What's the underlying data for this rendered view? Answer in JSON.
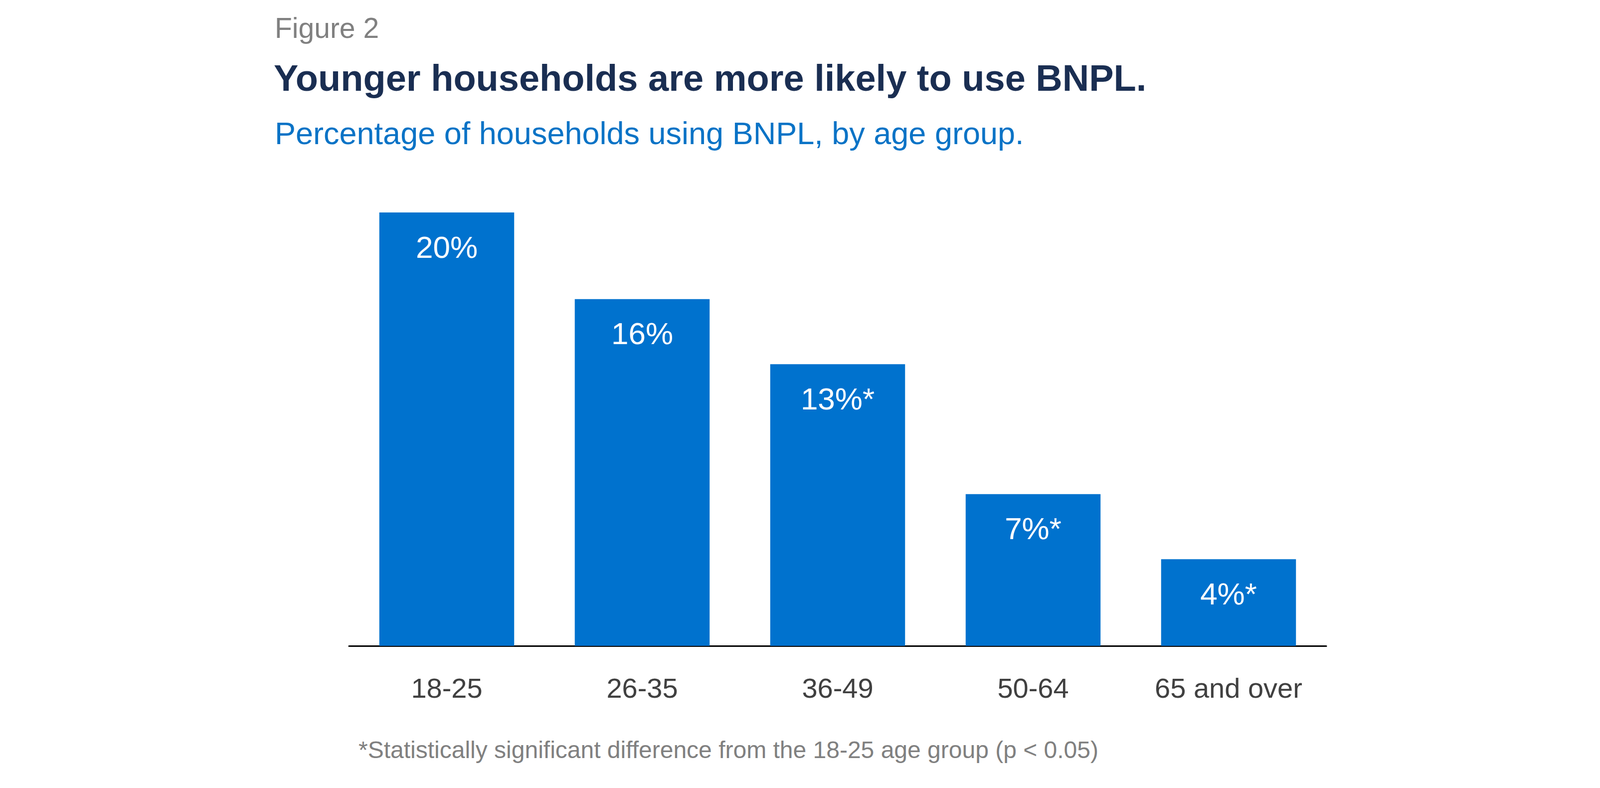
{
  "chart_data": {
    "type": "bar",
    "figure_label": "Figure 2",
    "title": "Younger households are more likely to use BNPL.",
    "subtitle": "Percentage of households using BNPL, by age group.",
    "footnote": "*Statistically significant difference from the 18-25 age group (p < 0.05)",
    "categories": [
      "18-25",
      "26-35",
      "36-49",
      "50-64",
      "65 and over"
    ],
    "values": [
      20,
      16,
      13,
      7,
      4
    ],
    "value_labels": [
      "20%",
      "16%",
      "13%*",
      "7%*",
      "4%*"
    ],
    "color": "#0072ce",
    "ylim": [
      0,
      20
    ],
    "grid": false,
    "data_labels": true,
    "tick_labels": "x"
  }
}
